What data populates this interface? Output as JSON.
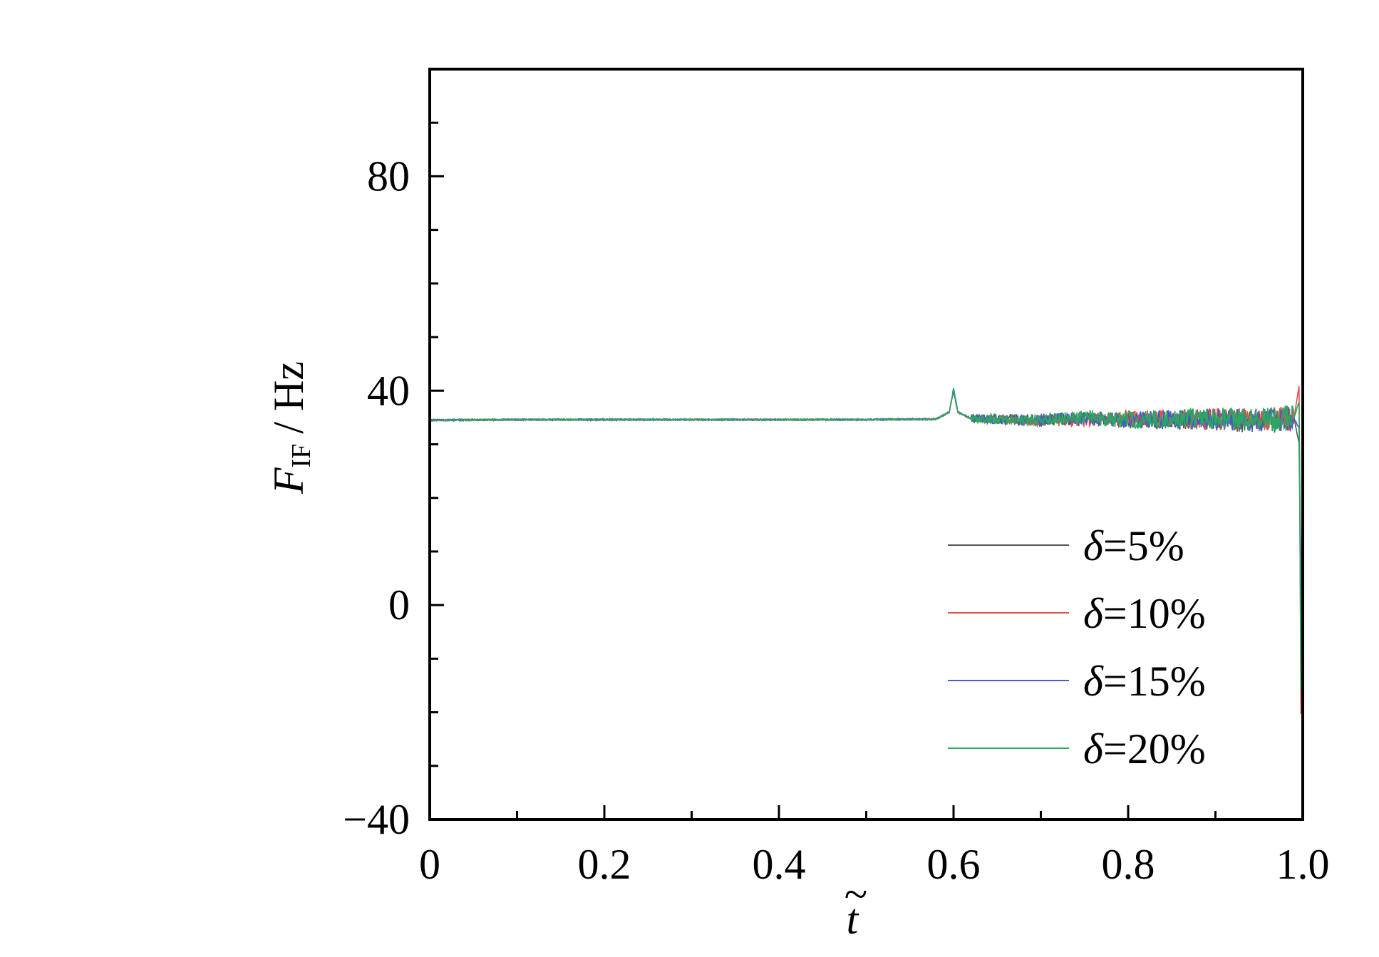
{
  "chart_data": {
    "type": "line",
    "title": "",
    "xlabel": {
      "prefix": "",
      "symbol": "t",
      "accent": "~",
      "unit": ""
    },
    "ylabel": {
      "symbol": "F",
      "subscript": "IF",
      "unit": "/ Hz"
    },
    "xlim": [
      0,
      1.0
    ],
    "ylim": [
      -40,
      100
    ],
    "xticks": [
      0,
      0.2,
      0.4,
      0.6,
      0.8,
      1.0
    ],
    "xtick_labels": [
      "0",
      "0.2",
      "0.4",
      "0.6",
      "0.8",
      "1.0"
    ],
    "xminor": 0.1,
    "yticks": [
      -40,
      0,
      40,
      80
    ],
    "ytick_labels": [
      "−40",
      "0",
      "40",
      "80"
    ],
    "yminor": 10,
    "grid": false,
    "legend_position": "bottom-right",
    "series": [
      {
        "name": "δ=5%",
        "color": "#555555",
        "x": [
          0,
          0.002,
          0.1,
          0.2,
          0.3,
          0.4,
          0.5,
          0.58,
          0.595,
          0.6,
          0.605,
          0.62,
          0.7,
          0.76,
          0.8,
          0.88,
          0.95,
          0.99,
          0.996,
          0.998,
          1.0
        ],
        "y": [
          34.5,
          34.5,
          34.6,
          34.6,
          34.6,
          34.6,
          34.6,
          34.7,
          36,
          40,
          36,
          34.8,
          34.5,
          34.8,
          34.4,
          34.7,
          34.2,
          34.8,
          30,
          -8,
          30
        ]
      },
      {
        "name": "δ=10%",
        "color": "#e05050",
        "x": [
          0,
          0.002,
          0.1,
          0.2,
          0.3,
          0.4,
          0.5,
          0.58,
          0.595,
          0.6,
          0.605,
          0.62,
          0.7,
          0.76,
          0.8,
          0.88,
          0.95,
          0.99,
          0.996,
          0.998,
          1.0
        ],
        "y": [
          34.5,
          34.5,
          34.6,
          34.6,
          34.6,
          34.6,
          34.6,
          34.7,
          36,
          40,
          36,
          34.8,
          34.4,
          34.6,
          34.9,
          34.7,
          34.6,
          35,
          41,
          -25,
          30
        ]
      },
      {
        "name": "δ=15%",
        "color": "#4060c0",
        "x": [
          0,
          0.002,
          0.1,
          0.2,
          0.3,
          0.4,
          0.5,
          0.58,
          0.595,
          0.6,
          0.605,
          0.62,
          0.7,
          0.76,
          0.8,
          0.88,
          0.95,
          0.99,
          0.996,
          0.998,
          1.0
        ],
        "y": [
          34.5,
          34.5,
          34.6,
          34.6,
          34.6,
          34.6,
          34.6,
          34.7,
          36,
          40,
          36,
          34.8,
          34.6,
          34.9,
          34.5,
          34.8,
          34.4,
          34.8,
          33,
          0,
          30
        ]
      },
      {
        "name": "δ=20%",
        "color": "#2ca860",
        "x": [
          0,
          0.002,
          0.1,
          0.2,
          0.3,
          0.4,
          0.5,
          0.58,
          0.595,
          0.6,
          0.605,
          0.62,
          0.7,
          0.76,
          0.8,
          0.88,
          0.95,
          0.99,
          0.996,
          0.998,
          1.0
        ],
        "y": [
          34.5,
          34.5,
          34.6,
          34.6,
          34.6,
          34.6,
          34.6,
          34.7,
          36,
          40.5,
          36,
          34.8,
          34.5,
          35,
          34.5,
          35,
          34.5,
          35,
          38,
          -20,
          30
        ]
      }
    ]
  }
}
